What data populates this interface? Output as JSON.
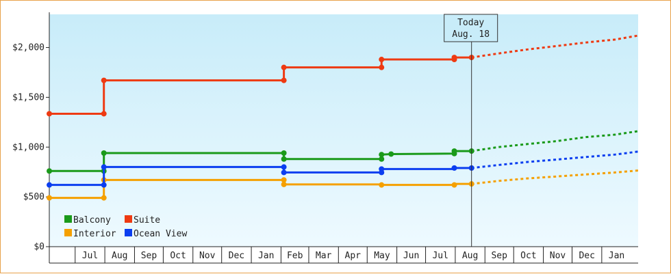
{
  "chart_data": {
    "type": "line",
    "step": true,
    "title": "",
    "xlabel": "",
    "ylabel": "",
    "ylim": [
      0,
      2333
    ],
    "yticks": [
      {
        "value": 0,
        "label": "$0"
      },
      {
        "value": 500,
        "label": "$500"
      },
      {
        "value": 1000,
        "label": "$1,000"
      },
      {
        "value": 1500,
        "label": "$1,500"
      },
      {
        "value": 2000,
        "label": "$2,000"
      }
    ],
    "x_start": "2019-06-04",
    "x_end": "2021-02-08",
    "months": [
      {
        "label": "Jul",
        "start": "2019-07-01",
        "end": "2019-08-01"
      },
      {
        "label": "Aug",
        "start": "2019-08-01",
        "end": "2019-09-01"
      },
      {
        "label": "Sep",
        "start": "2019-09-01",
        "end": "2019-10-01"
      },
      {
        "label": "Oct",
        "start": "2019-10-01",
        "end": "2019-11-01"
      },
      {
        "label": "Nov",
        "start": "2019-11-01",
        "end": "2019-12-01"
      },
      {
        "label": "Dec",
        "start": "2019-12-01",
        "end": "2020-01-01"
      },
      {
        "label": "Jan",
        "start": "2020-01-01",
        "end": "2020-02-01"
      },
      {
        "label": "Feb",
        "start": "2020-02-01",
        "end": "2020-03-01"
      },
      {
        "label": "Mar",
        "start": "2020-03-01",
        "end": "2020-04-01"
      },
      {
        "label": "Apr",
        "start": "2020-04-01",
        "end": "2020-05-01"
      },
      {
        "label": "May",
        "start": "2020-05-01",
        "end": "2020-06-01"
      },
      {
        "label": "Jun",
        "start": "2020-06-01",
        "end": "2020-07-01"
      },
      {
        "label": "Jul",
        "start": "2020-07-01",
        "end": "2020-08-01"
      },
      {
        "label": "Aug",
        "start": "2020-08-01",
        "end": "2020-09-01"
      },
      {
        "label": "Sep",
        "start": "2020-09-01",
        "end": "2020-10-01"
      },
      {
        "label": "Oct",
        "start": "2020-10-01",
        "end": "2020-11-01"
      },
      {
        "label": "Nov",
        "start": "2020-11-01",
        "end": "2020-12-01"
      },
      {
        "label": "Dec",
        "start": "2020-12-01",
        "end": "2021-01-01"
      },
      {
        "label": "Jan",
        "start": "2021-01-01",
        "end": "2021-02-01"
      }
    ],
    "today": {
      "date": "2020-08-18",
      "line1": "Today",
      "line2": "Aug. 18"
    },
    "series": [
      {
        "name": "Balcony",
        "color": "#1a9a1a",
        "points": [
          [
            "2019-06-04",
            760
          ],
          [
            "2019-07-31",
            760
          ],
          [
            "2019-07-31",
            940
          ],
          [
            "2020-02-04",
            940
          ],
          [
            "2020-02-04",
            880
          ],
          [
            "2020-05-16",
            880
          ],
          [
            "2020-05-16",
            925
          ],
          [
            "2020-05-26",
            930
          ],
          [
            "2020-07-31",
            935
          ],
          [
            "2020-07-31",
            960
          ],
          [
            "2020-08-18",
            960
          ]
        ],
        "markers": [
          [
            "2019-06-04",
            760
          ],
          [
            "2019-07-31",
            760
          ],
          [
            "2019-07-31",
            940
          ],
          [
            "2020-02-04",
            940
          ],
          [
            "2020-02-04",
            880
          ],
          [
            "2020-05-16",
            880
          ],
          [
            "2020-05-16",
            925
          ],
          [
            "2020-05-26",
            930
          ],
          [
            "2020-07-31",
            935
          ],
          [
            "2020-07-31",
            960
          ],
          [
            "2020-08-18",
            960
          ]
        ],
        "forecast": [
          [
            "2020-08-18",
            960
          ],
          [
            "2020-09-15",
            1000
          ],
          [
            "2020-10-15",
            1030
          ],
          [
            "2020-11-15",
            1060
          ],
          [
            "2020-12-15",
            1100
          ],
          [
            "2021-01-15",
            1125
          ],
          [
            "2021-02-08",
            1160
          ]
        ]
      },
      {
        "name": "Suite",
        "color": "#ee3a12",
        "points": [
          [
            "2019-06-04",
            1335
          ],
          [
            "2019-07-31",
            1335
          ],
          [
            "2019-07-31",
            1670
          ],
          [
            "2020-02-04",
            1670
          ],
          [
            "2020-02-04",
            1800
          ],
          [
            "2020-05-16",
            1800
          ],
          [
            "2020-05-16",
            1880
          ],
          [
            "2020-07-31",
            1880
          ],
          [
            "2020-07-31",
            1900
          ],
          [
            "2020-08-18",
            1900
          ]
        ],
        "markers": [
          [
            "2019-06-04",
            1335
          ],
          [
            "2019-07-31",
            1335
          ],
          [
            "2019-07-31",
            1670
          ],
          [
            "2020-02-04",
            1670
          ],
          [
            "2020-02-04",
            1800
          ],
          [
            "2020-05-16",
            1800
          ],
          [
            "2020-05-16",
            1880
          ],
          [
            "2020-07-31",
            1880
          ],
          [
            "2020-07-31",
            1900
          ],
          [
            "2020-08-18",
            1900
          ]
        ],
        "forecast": [
          [
            "2020-08-18",
            1900
          ],
          [
            "2020-09-15",
            1940
          ],
          [
            "2020-10-15",
            1980
          ],
          [
            "2020-11-15",
            2015
          ],
          [
            "2020-12-15",
            2050
          ],
          [
            "2021-01-15",
            2080
          ],
          [
            "2021-02-08",
            2120
          ]
        ]
      },
      {
        "name": "Interior",
        "color": "#f5a000",
        "points": [
          [
            "2019-06-04",
            490
          ],
          [
            "2019-07-31",
            490
          ],
          [
            "2019-07-31",
            670
          ],
          [
            "2020-02-04",
            670
          ],
          [
            "2020-02-04",
            625
          ],
          [
            "2020-05-16",
            625
          ],
          [
            "2020-05-16",
            620
          ],
          [
            "2020-07-31",
            620
          ],
          [
            "2020-07-31",
            630
          ],
          [
            "2020-08-18",
            630
          ]
        ],
        "markers": [
          [
            "2019-06-04",
            490
          ],
          [
            "2019-07-31",
            490
          ],
          [
            "2019-07-31",
            670
          ],
          [
            "2020-02-04",
            670
          ],
          [
            "2020-02-04",
            625
          ],
          [
            "2020-05-16",
            620
          ],
          [
            "2020-07-31",
            620
          ],
          [
            "2020-08-18",
            630
          ]
        ],
        "forecast": [
          [
            "2020-08-18",
            630
          ],
          [
            "2020-09-15",
            660
          ],
          [
            "2020-10-15",
            685
          ],
          [
            "2020-11-15",
            705
          ],
          [
            "2020-12-15",
            725
          ],
          [
            "2021-01-15",
            745
          ],
          [
            "2021-02-08",
            765
          ]
        ]
      },
      {
        "name": "Ocean View",
        "color": "#0b3ef0",
        "points": [
          [
            "2019-06-04",
            620
          ],
          [
            "2019-07-31",
            620
          ],
          [
            "2019-07-31",
            800
          ],
          [
            "2020-02-04",
            800
          ],
          [
            "2020-02-04",
            745
          ],
          [
            "2020-05-16",
            745
          ],
          [
            "2020-05-16",
            780
          ],
          [
            "2020-07-31",
            780
          ],
          [
            "2020-07-31",
            790
          ],
          [
            "2020-08-18",
            790
          ]
        ],
        "markers": [
          [
            "2019-06-04",
            620
          ],
          [
            "2019-07-31",
            620
          ],
          [
            "2019-07-31",
            800
          ],
          [
            "2020-02-04",
            800
          ],
          [
            "2020-02-04",
            745
          ],
          [
            "2020-05-16",
            745
          ],
          [
            "2020-05-16",
            780
          ],
          [
            "2020-07-31",
            790
          ],
          [
            "2020-08-18",
            790
          ]
        ],
        "forecast": [
          [
            "2020-08-18",
            790
          ],
          [
            "2020-09-15",
            820
          ],
          [
            "2020-10-15",
            850
          ],
          [
            "2020-11-15",
            875
          ],
          [
            "2020-12-15",
            900
          ],
          [
            "2021-01-15",
            925
          ],
          [
            "2021-02-08",
            955
          ]
        ]
      }
    ],
    "legend": {
      "placement": "bottom-left",
      "columns": [
        [
          "Balcony",
          "Interior"
        ],
        [
          "Suite",
          "Ocean View"
        ]
      ]
    }
  }
}
